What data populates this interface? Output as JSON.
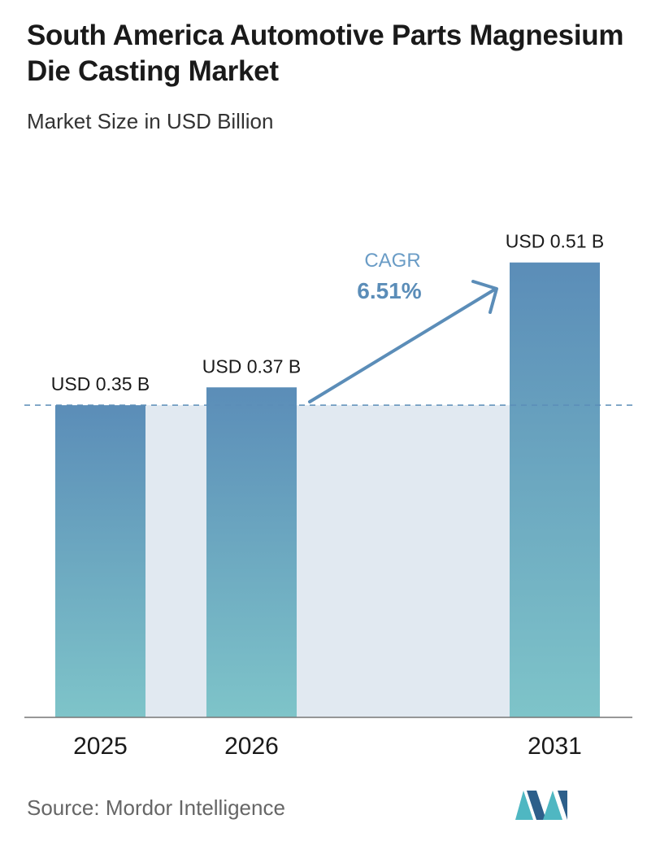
{
  "title": "South America Automotive Parts Magnesium Die Casting Market",
  "subtitle": "Market Size in USD Billion",
  "source": "Source: Mordor Intelligence",
  "cagr": {
    "label": "CAGR",
    "value": "6.51%"
  },
  "colors": {
    "bar_top": "#5b8db8",
    "bar_bottom": "#7ec4c9",
    "band": "#e1e9f1",
    "dashed_line": "#5b8db8",
    "arrow": "#5b8db8",
    "cagr_label": "#6a9cc6",
    "cagr_value": "#5b8db8",
    "logo_dark": "#2d5f8a",
    "logo_light": "#4fb7c2"
  },
  "chart_data": {
    "type": "bar",
    "categories": [
      "2025",
      "2026",
      "2031"
    ],
    "values": [
      0.35,
      0.37,
      0.51
    ],
    "data_labels": [
      "USD 0.35 B",
      "USD 0.37 B",
      "USD 0.51 B"
    ],
    "ylim": [
      0,
      0.59
    ],
    "reference_line": 0.35,
    "grid": false,
    "title": "South America Automotive Parts Magnesium Die Casting Market",
    "ylabel": "Market Size in USD Billion"
  }
}
